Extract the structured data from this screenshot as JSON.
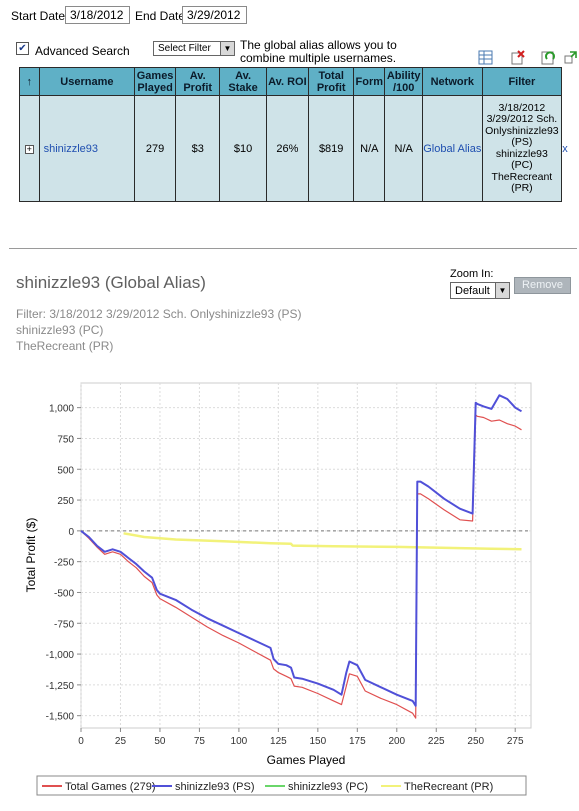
{
  "filters": {
    "start_label": "Start Date:",
    "start_value": "3/18/2012",
    "end_label": "End Date:",
    "end_value": "3/29/2012",
    "advanced_label": "Advanced Search",
    "advanced_checked": true,
    "select_filter": "Select Filter",
    "alias_note_1": "The global alias allows you to",
    "alias_note_2": "combine multiple usernames."
  },
  "table": {
    "headers": [
      {
        "key": "sort",
        "lines": [
          "↑"
        ]
      },
      {
        "key": "username",
        "lines": [
          "Username"
        ]
      },
      {
        "key": "games",
        "lines": [
          "Games",
          "Played"
        ]
      },
      {
        "key": "avprofit",
        "lines": [
          "Av.",
          "Profit"
        ]
      },
      {
        "key": "avstake",
        "lines": [
          "Av.",
          "Stake"
        ]
      },
      {
        "key": "avroi",
        "lines": [
          "Av. ROI"
        ]
      },
      {
        "key": "totalprofit",
        "lines": [
          "Total",
          "Profit"
        ]
      },
      {
        "key": "form",
        "lines": [
          "Form"
        ]
      },
      {
        "key": "ability",
        "lines": [
          "Ability",
          "/100"
        ]
      },
      {
        "key": "network",
        "lines": [
          "Network"
        ]
      },
      {
        "key": "filter",
        "lines": [
          "Filter"
        ]
      }
    ],
    "row": {
      "expand": "+",
      "username": "shinizzle93",
      "games": "279",
      "avprofit": "$3",
      "avstake": "$10",
      "avroi": "26%",
      "totalprofit": "$819",
      "form": "N/A",
      "ability": "N/A",
      "network": "Global Alias",
      "filter_lines": [
        "3/18/2012",
        "3/29/2012 Sch.",
        "Onlyshinizzle93",
        "(PS)",
        "shinizzle93",
        "(PC)",
        "TheRecreant",
        "(PR)"
      ],
      "remove": "x"
    }
  },
  "detail": {
    "title": "shinizzle93 (Global Alias)",
    "filter_line1": "Filter: 3/18/2012 3/29/2012 Sch. Onlyshinizzle93 (PS)",
    "filter_line2": "shinizzle93 (PC)",
    "filter_line3": "TheRecreant (PR)",
    "zoom_label": "Zoom In:",
    "zoom_value": "Default",
    "remove_button": "Remove"
  },
  "chart_data": {
    "type": "line",
    "xlabel": "Games Played",
    "ylabel": "Total Profit ($)",
    "xlim": [
      0,
      285
    ],
    "ylim": [
      -1600,
      1200
    ],
    "xticks": [
      0,
      25,
      50,
      75,
      100,
      125,
      150,
      175,
      200,
      225,
      250,
      275
    ],
    "yticks": [
      1000,
      750,
      500,
      250,
      0,
      -250,
      -500,
      -750,
      -1000,
      -1250,
      -1500
    ],
    "ytick_labels": [
      "1,000",
      "750",
      "500",
      "250",
      "0",
      "-250",
      "-500",
      "-750",
      "-1,000",
      "-1,250",
      "-1,500"
    ],
    "grid": true,
    "legend_position": "bottom",
    "series": [
      {
        "name": "Total Games (279)",
        "color": "#e05050",
        "x": [
          0,
          5,
          10,
          15,
          20,
          25,
          30,
          35,
          40,
          45,
          48,
          50,
          60,
          70,
          80,
          90,
          100,
          110,
          120,
          122,
          125,
          130,
          133,
          135,
          140,
          150,
          160,
          165,
          168,
          170,
          175,
          180,
          190,
          200,
          210,
          212,
          213,
          215,
          220,
          230,
          240,
          248,
          250,
          251,
          255,
          260,
          265,
          270,
          275,
          279
        ],
        "y": [
          0,
          -60,
          -130,
          -190,
          -170,
          -190,
          -250,
          -300,
          -370,
          -420,
          -520,
          -550,
          -620,
          -700,
          -780,
          -850,
          -910,
          -980,
          -1050,
          -1120,
          -1150,
          -1180,
          -1200,
          -1260,
          -1270,
          -1320,
          -1380,
          -1410,
          -1260,
          -1160,
          -1180,
          -1300,
          -1360,
          -1410,
          -1480,
          -1520,
          300,
          300,
          260,
          170,
          90,
          80,
          940,
          930,
          920,
          890,
          900,
          870,
          850,
          820
        ]
      },
      {
        "name": "shinizzle93 (PS)",
        "color": "#5050d8",
        "x": [
          0,
          5,
          10,
          15,
          20,
          25,
          30,
          35,
          40,
          45,
          48,
          50,
          60,
          70,
          80,
          90,
          100,
          110,
          120,
          122,
          125,
          130,
          133,
          135,
          140,
          150,
          160,
          165,
          168,
          170,
          175,
          180,
          190,
          200,
          210,
          212,
          213,
          215,
          220,
          230,
          240,
          248,
          250,
          251,
          255,
          260,
          265,
          270,
          275,
          279
        ],
        "y": [
          0,
          -50,
          -120,
          -170,
          -150,
          -170,
          -220,
          -270,
          -330,
          -380,
          -480,
          -510,
          -560,
          -640,
          -710,
          -770,
          -830,
          -890,
          -950,
          -1040,
          -1080,
          -1090,
          -1110,
          -1190,
          -1200,
          -1240,
          -1290,
          -1330,
          -1150,
          -1060,
          -1090,
          -1210,
          -1270,
          -1330,
          -1380,
          -1420,
          400,
          400,
          360,
          260,
          180,
          140,
          1040,
          1030,
          1010,
          990,
          1100,
          1070,
          1000,
          970
        ]
      },
      {
        "name": "shinizzle93 (PC)",
        "color": "#6ad66a",
        "x": [],
        "y": []
      },
      {
        "name": "TheRecreant (PR)",
        "color": "#f2f27a",
        "x": [
          27,
          40,
          60,
          90,
          120,
          133,
          134,
          160,
          200,
          240,
          260,
          279
        ],
        "y": [
          -20,
          -50,
          -70,
          -85,
          -100,
          -105,
          -120,
          -125,
          -130,
          -140,
          -145,
          -150
        ]
      }
    ]
  }
}
